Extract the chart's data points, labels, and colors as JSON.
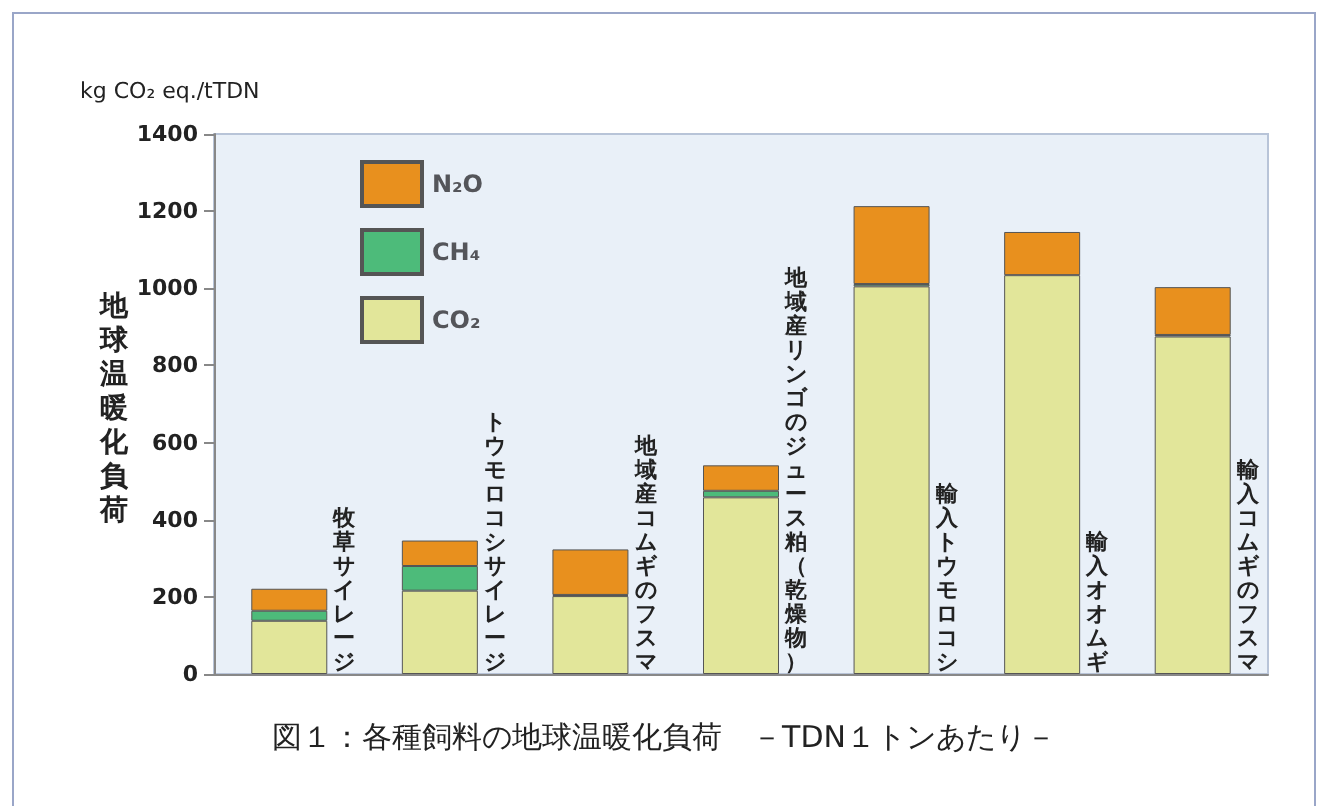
{
  "chart_data": {
    "type": "bar",
    "stacked": true,
    "title": "図１：各種飼料の地球温暖化負荷　－TDN１トンあたり－",
    "ylabel": "地球温暖化負荷",
    "annotations": [
      "kg CO₂ eq./tTDN"
    ],
    "categories": [
      "牧草サイレージ",
      "トウモロコシサイレージ",
      "地域産コムギのフスマ",
      "地域産リンゴのジュース粕（乾燥物）",
      "輸入トウモロコシ",
      "輸入オオムギ",
      "輸入コムギのフスマ"
    ],
    "series": [
      {
        "name": "CO₂",
        "color": "#e2e69a",
        "values": [
          138,
          216,
          202,
          458,
          1005,
          1034,
          875
        ]
      },
      {
        "name": "CH₄",
        "color": "#4dbb7a",
        "values": [
          26,
          64,
          3,
          17,
          6,
          null,
          4
        ]
      },
      {
        "name": "N₂O",
        "color": "#e8901e",
        "values": [
          57,
          66,
          118,
          66,
          202,
          112,
          124
        ]
      }
    ],
    "ylim": [
      0,
      1400
    ],
    "yticks": [
      0,
      200,
      400,
      600,
      800,
      1000,
      1200,
      1400
    ],
    "grid": false,
    "legend": "top left"
  }
}
